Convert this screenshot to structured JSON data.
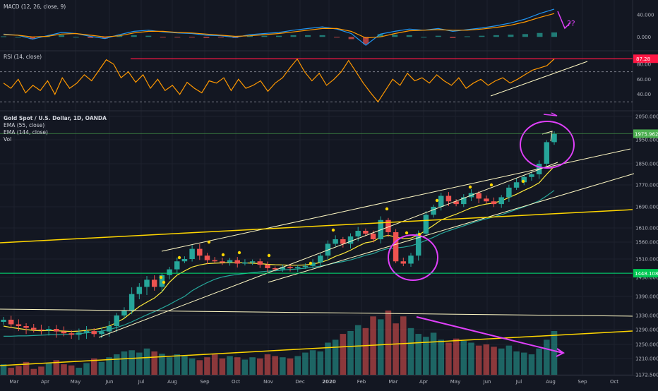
{
  "panes": {
    "macd_label": "MACD (12, 26, close, 9)",
    "rsi_label": "RSI (14, close)",
    "main_labels": [
      "Gold Spot / U.S. Dollar, 1D, OANDA",
      "EMA (55, close)",
      "EMA (144, close)",
      "Vol"
    ]
  },
  "colors": {
    "background": "#131722",
    "up": "#26a69a",
    "down": "#ef5350",
    "ema55": "#ffeb3b",
    "ema144": "#26a69a",
    "rsi": "#ff9800",
    "macd": "#2196f3",
    "signal": "#ff9800",
    "drawing_white": "#fff9c4",
    "drawing_yellow": "#ffd600",
    "drawing_magenta": "#e040fb",
    "highlight_red": "#ff1744"
  },
  "annotations": {
    "question_marks": "??"
  },
  "chart_data": [
    {
      "type": "line",
      "pane": "MACD",
      "yticks": [
        "40.000",
        "0.000"
      ],
      "ylim": [
        -20,
        60
      ],
      "series": [
        {
          "name": "MACD",
          "values": [
            5,
            3,
            -4,
            2,
            8,
            6,
            1,
            -3,
            4,
            10,
            12,
            9,
            7,
            6,
            3,
            2,
            -1,
            4,
            6,
            8,
            12,
            15,
            18,
            14,
            6,
            -15,
            5,
            10,
            14,
            12,
            15,
            10,
            13,
            16,
            20,
            25,
            32,
            42,
            50
          ]
        },
        {
          "name": "Signal",
          "values": [
            4,
            3,
            0,
            1,
            5,
            6,
            3,
            0,
            2,
            7,
            10,
            10,
            8,
            7,
            5,
            3,
            1,
            2,
            4,
            6,
            9,
            12,
            15,
            15,
            10,
            -2,
            0,
            6,
            11,
            12,
            13,
            12,
            12,
            14,
            17,
            21,
            27,
            35,
            42
          ]
        }
      ]
    },
    {
      "type": "line",
      "pane": "RSI",
      "title": "RSI (14, close)",
      "ylim": [
        20,
        95
      ],
      "yticks": [
        "87.28",
        "80.00",
        "60.00",
        "40.00"
      ],
      "levels": [
        70,
        30
      ],
      "last_value": "87.28",
      "values": [
        55,
        48,
        60,
        42,
        52,
        45,
        58,
        40,
        62,
        48,
        55,
        66,
        58,
        72,
        86,
        80,
        62,
        70,
        56,
        66,
        48,
        60,
        45,
        52,
        40,
        56,
        48,
        42,
        58,
        55,
        62,
        45,
        60,
        48,
        52,
        58,
        44,
        55,
        62,
        75,
        87,
        70,
        58,
        68,
        52,
        60,
        70,
        85,
        70,
        55,
        42,
        30,
        45,
        60,
        52,
        68,
        58,
        62,
        55,
        66,
        58,
        52,
        62,
        48,
        55,
        60,
        52,
        58,
        62,
        55,
        60,
        66,
        72,
        75,
        78,
        87
      ]
    },
    {
      "type": "candlestick",
      "pane": "Price",
      "title": "Gold Spot / U.S. Dollar, 1D, OANDA",
      "ylim": [
        1172.5,
        2050
      ],
      "yticks": [
        "2050.000",
        "1950.000",
        "1850.000",
        "1770.000",
        "1690.000",
        "1610.000",
        "1560.000",
        "1510.000",
        "1430.000",
        "1390.000",
        "1330.000",
        "1290.000",
        "1250.000",
        "1210.000",
        "1172.500"
      ],
      "xticks": [
        "Mar",
        "Apr",
        "May",
        "Jun",
        "Jul",
        "Aug",
        "Sep",
        "Oct",
        "Nov",
        "Dec",
        "2020",
        "Feb",
        "Mar",
        "Apr",
        "May",
        "Jun",
        "Jul",
        "Aug",
        "Sep",
        "Oct"
      ],
      "price_labels": [
        "1975.962",
        "1448.108"
      ],
      "close": [
        1318,
        1305,
        1300,
        1295,
        1290,
        1288,
        1292,
        1285,
        1280,
        1276,
        1282,
        1286,
        1278,
        1285,
        1300,
        1330,
        1345,
        1395,
        1410,
        1425,
        1410,
        1440,
        1465,
        1500,
        1510,
        1540,
        1520,
        1505,
        1500,
        1495,
        1505,
        1490,
        1495,
        1500,
        1485,
        1470,
        1465,
        1475,
        1470,
        1475,
        1480,
        1495,
        1520,
        1555,
        1570,
        1555,
        1580,
        1600,
        1590,
        1570,
        1640,
        1595,
        1500,
        1490,
        1520,
        1590,
        1660,
        1690,
        1730,
        1710,
        1700,
        1725,
        1740,
        1720,
        1710,
        1700,
        1725,
        1760,
        1780,
        1800,
        1810,
        1850,
        1940,
        1975
      ],
      "ema55": [
        1300,
        1296,
        1293,
        1290,
        1288,
        1287,
        1288,
        1287,
        1286,
        1285,
        1286,
        1288,
        1290,
        1294,
        1300,
        1310,
        1322,
        1340,
        1358,
        1372,
        1385,
        1400,
        1420,
        1440,
        1458,
        1475,
        1484,
        1490,
        1492,
        1493,
        1494,
        1494,
        1493,
        1492,
        1490,
        1487,
        1485,
        1484,
        1483,
        1483,
        1484,
        1488,
        1495,
        1506,
        1518,
        1526,
        1536,
        1548,
        1558,
        1562,
        1578,
        1584,
        1578,
        1572,
        1574,
        1585,
        1602,
        1620,
        1640,
        1652,
        1662,
        1674,
        1686,
        1694,
        1700,
        1704,
        1712,
        1724,
        1736,
        1750,
        1762,
        1778,
        1810,
        1840
      ],
      "ema144": [
        1272,
        1272,
        1273,
        1273,
        1274,
        1275,
        1276,
        1276,
        1277,
        1278,
        1279,
        1281,
        1283,
        1286,
        1290,
        1296,
        1303,
        1312,
        1322,
        1332,
        1342,
        1353,
        1365,
        1378,
        1390,
        1402,
        1411,
        1419,
        1426,
        1432,
        1438,
        1443,
        1447,
        1451,
        1454,
        1457,
        1459,
        1462,
        1464,
        1467,
        1470,
        1474,
        1479,
        1486,
        1493,
        1499,
        1506,
        1514,
        1521,
        1526,
        1535,
        1541,
        1543,
        1545,
        1549,
        1556,
        1566,
        1577,
        1590,
        1600,
        1609,
        1618,
        1628,
        1637,
        1645,
        1652,
        1660,
        1670,
        1680,
        1690,
        1700,
        1712,
        1730,
        1750
      ],
      "volume": [
        18,
        12,
        15,
        22,
        10,
        14,
        20,
        25,
        18,
        16,
        12,
        20,
        28,
        22,
        30,
        35,
        40,
        42,
        38,
        45,
        40,
        36,
        30,
        35,
        32,
        28,
        25,
        30,
        35,
        28,
        32,
        30,
        26,
        30,
        28,
        35,
        32,
        30,
        28,
        32,
        38,
        42,
        40,
        55,
        60,
        70,
        75,
        85,
        80,
        100,
        95,
        110,
        88,
        100,
        80,
        70,
        65,
        72,
        60,
        55,
        62,
        58,
        55,
        50,
        52,
        48,
        45,
        50,
        40,
        38,
        35,
        45,
        60,
        75
      ]
    }
  ]
}
